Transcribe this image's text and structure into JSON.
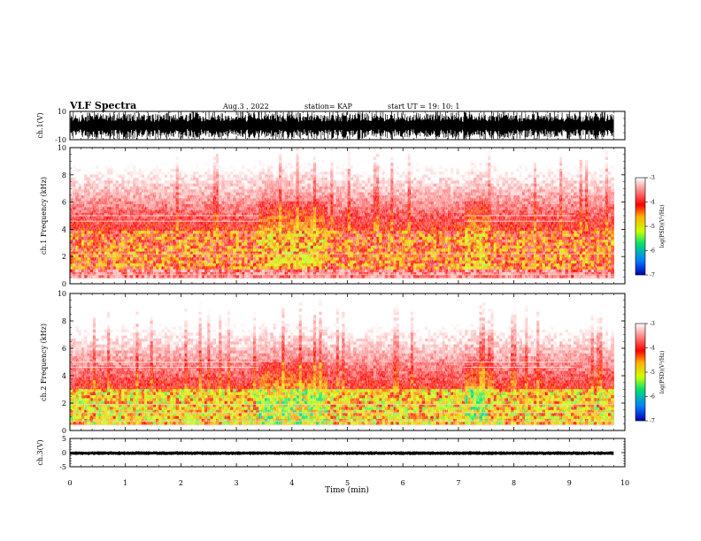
{
  "header": {
    "title": "VLF Spectra",
    "date": "Aug.3 , 2022",
    "station": "station= KAP",
    "start": "start UT = 19: 10: 1"
  },
  "colors": {
    "background": "#ffffff",
    "waveform": "#000000",
    "colormap": [
      "#0000b4",
      "#0080ff",
      "#00e070",
      "#ccff00",
      "#ffb000",
      "#ff0000",
      "#ffffff"
    ]
  },
  "colorbar": {
    "label": "log(PSD)(V²/Hz)",
    "ticks": [
      "-3",
      "-4",
      "-5",
      "-6",
      "-7"
    ]
  },
  "chart_data": [
    {
      "type": "line",
      "name": "ch1_waveform",
      "ylabel": "ch.1(V)",
      "ylim": [
        -10,
        10
      ],
      "yticks": [
        "10",
        "-10"
      ],
      "xlim": [
        0,
        10
      ],
      "description_values": {
        "amplitude_range": [
          -10,
          10
        ],
        "data_end_min": 9.8
      }
    },
    {
      "type": "heatmap",
      "name": "ch1_spectrogram",
      "ylabel": "ch.1 Frequency (kHz)",
      "xlim": [
        0,
        10
      ],
      "ylim": [
        0,
        10
      ],
      "yticks": [
        "10",
        "8",
        "6",
        "4",
        "2",
        "0"
      ],
      "data_end_min": 9.8,
      "zlim": [
        -7,
        -3
      ],
      "band_kHz": [
        1,
        4
      ],
      "band_level": -4.3,
      "line_kHz": [
        2.2,
        0.7,
        0.4
      ]
    },
    {
      "type": "heatmap",
      "name": "ch2_spectrogram",
      "ylabel": "ch.2 Frequency (kHz)",
      "xlim": [
        0,
        10
      ],
      "ylim": [
        0,
        10
      ],
      "yticks": [
        "10",
        "8",
        "6",
        "4",
        "2",
        "0"
      ],
      "data_end_min": 9.8,
      "zlim": [
        -7,
        -3
      ],
      "band_kHz": [
        0.5,
        3
      ],
      "band_level": -4.8,
      "line_kHz": [
        1.9,
        1.3,
        0.7,
        0.4
      ]
    },
    {
      "type": "line",
      "name": "ch3_waveform",
      "ylabel": "ch.3(V)",
      "ylim": [
        -5,
        5
      ],
      "yticks": [
        "5",
        "0",
        "-5"
      ],
      "xlim": [
        0,
        10
      ],
      "level": [
        -0.6,
        0.2
      ],
      "data_end_min": 9.8
    }
  ],
  "xaxis": {
    "label": "Time (min)",
    "ticks": [
      "0",
      "1",
      "2",
      "3",
      "4",
      "5",
      "6",
      "7",
      "8",
      "9",
      "10"
    ]
  }
}
